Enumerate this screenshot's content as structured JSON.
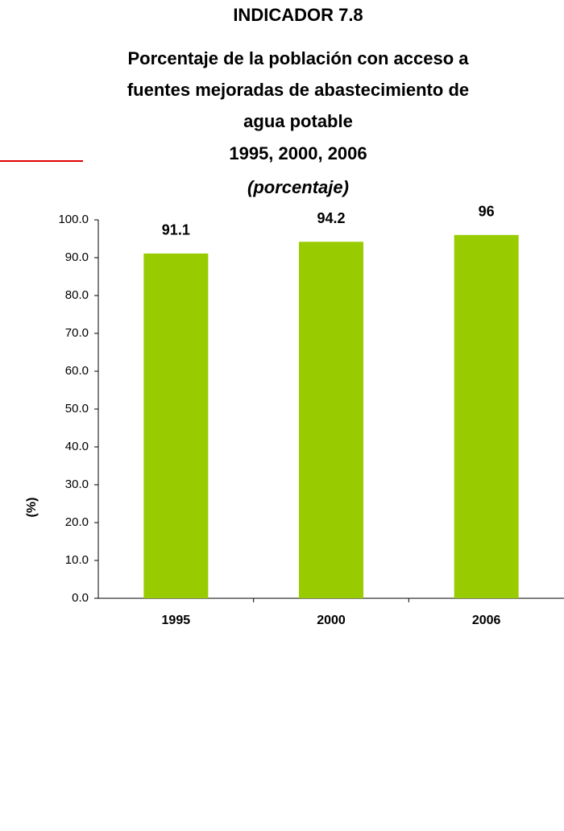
{
  "chart_data": {
    "type": "bar",
    "title": [
      "INDICADOR 7.8",
      "Porcentaje de la población con acceso a",
      "fuentes mejoradas de abastecimiento de",
      "agua potable"
    ],
    "subtitle": "1995, 2000, 2006",
    "unit_note": "(porcentaje)",
    "y_label": "(%)",
    "categories": [
      "1995",
      "2000",
      "2006"
    ],
    "values": [
      91.1,
      94.2,
      96
    ],
    "color": "#99cc00",
    "ylim": [
      0,
      100
    ],
    "yticks": [
      {
        "value": 0,
        "label": "0.0"
      },
      {
        "value": 10,
        "label": "10.0"
      },
      {
        "value": 20,
        "label": "20.0"
      },
      {
        "value": 30,
        "label": "30.0"
      },
      {
        "value": 40,
        "label": "40.0"
      },
      {
        "value": 50,
        "label": "50.0"
      },
      {
        "value": 60,
        "label": "60.0"
      },
      {
        "value": 70,
        "label": "70.0"
      },
      {
        "value": 80,
        "label": "80.0"
      },
      {
        "value": 90,
        "label": "90.0"
      },
      {
        "value": 100,
        "label": "100.0"
      }
    ],
    "grid": false
  }
}
